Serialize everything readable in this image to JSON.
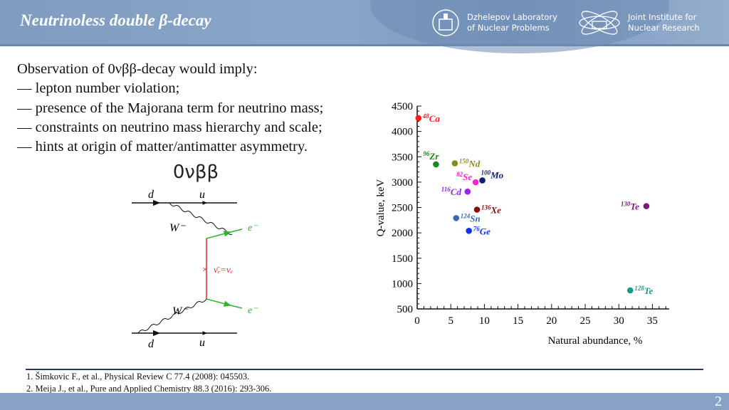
{
  "header": {
    "title": "Neutrinoless double β-decay",
    "logo_dlnp": "Dzhelepov Laboratory of Nuclear Problems",
    "logo_dlnp_lines": [
      "Dzhelepov Laboratory",
      "of Nuclear Problems"
    ],
    "logo_jinr": "Joint Institute for Nuclear Research",
    "logo_jinr_lines": [
      "Joint Institute for",
      "Nuclear Research"
    ]
  },
  "bullets": {
    "intro": "Observation of 0νββ-decay would imply:",
    "items": [
      "— lepton number violation;",
      "— presence of the Majorana term for neutrino mass;",
      "— constraints on neutrino mass hierarchy and scale;",
      "— hints at origin of matter/antimatter asymmetry."
    ]
  },
  "diagram": {
    "title": "0νββ",
    "quark_in": "d",
    "quark_out": "u",
    "boson": "W⁻",
    "electron": "e⁻",
    "neutrino": "ν̄ₑ=νₑ",
    "colors": {
      "lepton": "#2db52d",
      "neutrino": "#e8262b",
      "quark": "#111111"
    }
  },
  "chart_data": {
    "type": "scatter",
    "xlabel": "Natural abundance, %",
    "ylabel": "Q-value, keV",
    "xlim": [
      0,
      37.5
    ],
    "ylim": [
      500,
      4500
    ],
    "xticks": [
      0,
      5,
      10,
      15,
      20,
      25,
      30,
      35
    ],
    "yticks": [
      500,
      1000,
      1500,
      2000,
      2500,
      3000,
      3500,
      4000,
      4500
    ],
    "grid": false,
    "points": [
      {
        "mass": "48",
        "el": "Ca",
        "x": 0.187,
        "y": 4263,
        "color": "#ff1a1a"
      },
      {
        "mass": "96",
        "el": "Zr",
        "x": 2.8,
        "y": 3350,
        "color": "#1a8a1a"
      },
      {
        "mass": "150",
        "el": "Nd",
        "x": 5.6,
        "y": 3371,
        "color": "#8a8a1a"
      },
      {
        "mass": "82",
        "el": "Se",
        "x": 8.7,
        "y": 2998,
        "color": "#ff22cc"
      },
      {
        "mass": "100",
        "el": "Mo",
        "x": 9.7,
        "y": 3034,
        "color": "#10207a"
      },
      {
        "mass": "116",
        "el": "Cd",
        "x": 7.5,
        "y": 2813,
        "color": "#a020f0"
      },
      {
        "mass": "136",
        "el": "Xe",
        "x": 8.9,
        "y": 2458,
        "color": "#8b0a0a"
      },
      {
        "mass": "124",
        "el": "Sn",
        "x": 5.8,
        "y": 2291,
        "color": "#3a6aaa"
      },
      {
        "mass": "76",
        "el": "Ge",
        "x": 7.7,
        "y": 2039,
        "color": "#1030ff"
      },
      {
        "mass": "130",
        "el": "Te",
        "x": 34.1,
        "y": 2527,
        "color": "#7a1a7a"
      },
      {
        "mass": "128",
        "el": "Te",
        "x": 31.7,
        "y": 866,
        "color": "#1a9a88"
      }
    ]
  },
  "references": [
    "1. Šimkovic F., et al., Physical Review C 77.4 (2008): 045503.",
    "2. Meija J., et al., Pure and Applied Chemistry 88.3 (2016): 293-306."
  ],
  "page_number": "2"
}
